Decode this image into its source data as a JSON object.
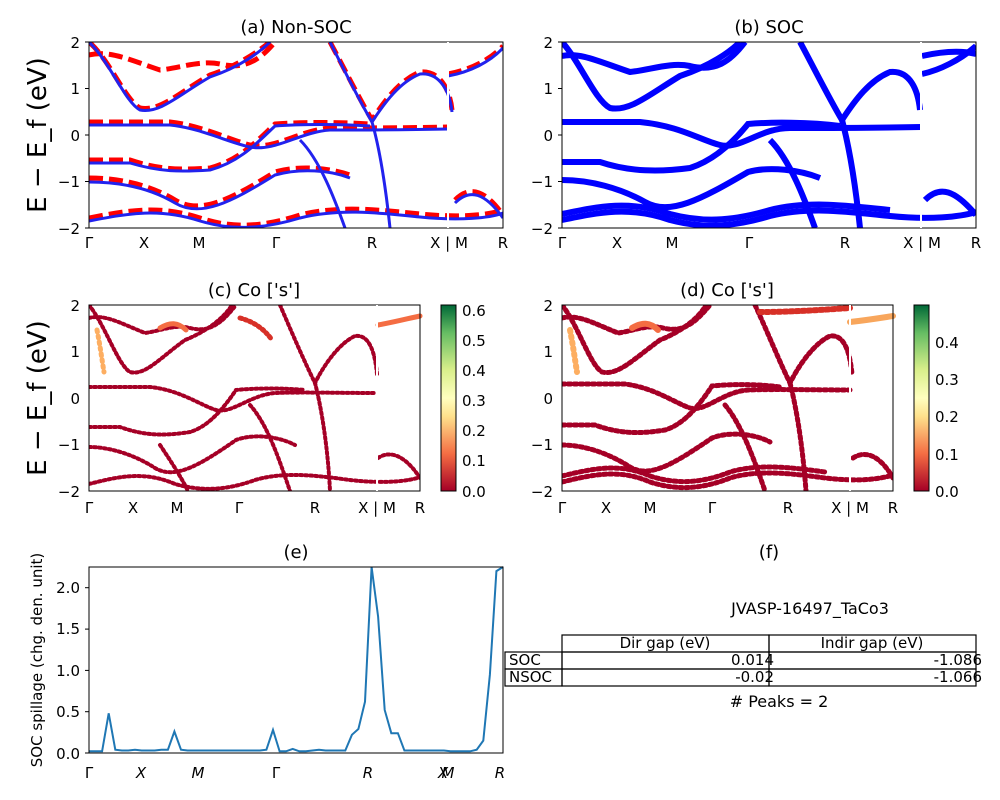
{
  "chart_data": [
    {
      "type": "line",
      "title": "(a) Non-SOC",
      "ylabel": "E − E_f (eV)",
      "ylim": [
        -2,
        2
      ],
      "yticks": [
        "2",
        "1",
        "0",
        "−1",
        "−2"
      ],
      "xticks": [
        "Γ",
        "X",
        "M",
        "Γ",
        "R",
        "X | M",
        "R"
      ],
      "series": [
        {
          "color": "#ff0000",
          "style": "dashed"
        },
        {
          "color": "#0000ff",
          "style": "solid"
        }
      ]
    },
    {
      "type": "line",
      "title": "(b) SOC",
      "ylim": [
        -2,
        2
      ],
      "yticks": [
        "2",
        "1",
        "0",
        "−1",
        "−2"
      ],
      "xticks": [
        "Γ",
        "X",
        "M",
        "Γ",
        "R",
        "X | M",
        "R"
      ],
      "series": [
        {
          "color": "#0000ff",
          "style": "solid"
        }
      ]
    },
    {
      "type": "scatter",
      "title": "(c)  Co ['s']",
      "ylabel": "E − E_f (eV)",
      "ylim": [
        -2,
        2
      ],
      "yticks": [
        "2",
        "1",
        "0",
        "−1",
        "−2"
      ],
      "xticks": [
        "Γ",
        "X",
        "M",
        "Γ",
        "R",
        "X | M",
        "R"
      ],
      "colorbar": {
        "range": [
          0,
          0.62
        ],
        "ticks": [
          "0.6",
          "0.5",
          "0.4",
          "0.3",
          "0.2",
          "0.1",
          "0.0"
        ],
        "colormap": "RdYlGn"
      }
    },
    {
      "type": "scatter",
      "title": "(d) Co ['s']",
      "ylim": [
        -2,
        2
      ],
      "yticks": [
        "2",
        "1",
        "0",
        "−1",
        "−2"
      ],
      "xticks": [
        "Γ",
        "X",
        "M",
        "Γ",
        "R",
        "X | M",
        "R"
      ],
      "colorbar": {
        "range": [
          0,
          0.5
        ],
        "ticks": [
          "0.4",
          "0.3",
          "0.2",
          "0.1",
          "0.0"
        ],
        "colormap": "RdYlGn"
      }
    },
    {
      "type": "line",
      "title": "(e)",
      "ylabel": "SOC spillage (chg. den. unit)",
      "ylim": [
        0,
        2.25
      ],
      "yticks": [
        "2.0",
        "1.5",
        "1.0",
        "0.5",
        "0.0"
      ],
      "xticks": [
        "Γ",
        "X",
        "M",
        "Γ",
        "R",
        "X",
        "M",
        "R"
      ],
      "x": [
        0,
        4,
        8,
        12,
        16,
        20,
        24,
        28,
        32,
        36,
        40,
        44,
        48,
        52,
        56,
        60,
        64,
        68,
        72,
        76,
        80,
        84,
        88,
        92,
        96,
        100,
        104,
        108,
        112,
        116,
        120,
        124,
        128,
        132,
        136,
        140,
        144,
        148,
        152,
        156,
        160,
        164,
        168,
        172,
        176,
        180,
        184,
        188,
        192,
        196,
        200,
        204,
        208,
        212,
        216,
        220,
        224,
        228,
        232,
        236,
        240,
        244,
        248,
        252
      ],
      "values": [
        0.02,
        0.02,
        0.02,
        0.48,
        0.04,
        0.03,
        0.03,
        0.04,
        0.03,
        0.03,
        0.03,
        0.04,
        0.04,
        0.26,
        0.04,
        0.03,
        0.03,
        0.03,
        0.03,
        0.03,
        0.03,
        0.03,
        0.03,
        0.03,
        0.03,
        0.03,
        0.03,
        0.04,
        0.28,
        0.02,
        0.02,
        0.05,
        0.02,
        0.02,
        0.03,
        0.04,
        0.03,
        0.03,
        0.03,
        0.03,
        0.22,
        0.29,
        0.62,
        2.25,
        1.65,
        0.52,
        0.24,
        0.24,
        0.03,
        0.03,
        0.03,
        0.03,
        0.03,
        0.03,
        0.03,
        0.02,
        0.02,
        0.02,
        0.02,
        0.04,
        0.15,
        0.95,
        2.2,
        2.25
      ],
      "color": "#1f77b4"
    },
    {
      "type": "table",
      "title": "(f)",
      "subtitle": "JVASP-16497_TaCo3",
      "columns": [
        "Dir gap (eV)",
        "Indir gap (eV)"
      ],
      "rows": [
        {
          "label": "SOC",
          "cells": [
            "0.014",
            "-1.086"
          ]
        },
        {
          "label": "NSOC",
          "cells": [
            "-0.02",
            "-1.066"
          ]
        }
      ],
      "footer": "# Peaks = 2"
    }
  ]
}
